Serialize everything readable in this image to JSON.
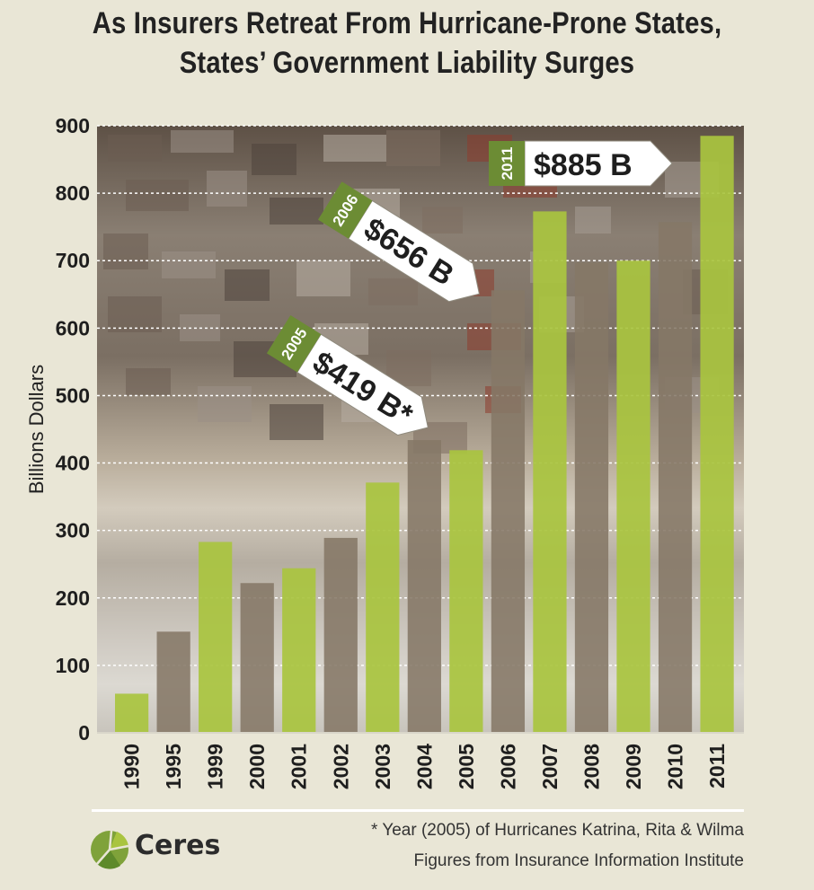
{
  "title_line1": "As Insurers Retreat From Hurricane-Prone States,",
  "title_line2": "States’ Government Liability Surges",
  "chart_data": {
    "type": "bar",
    "ylabel": "Billions Dollars",
    "ylim": [
      0,
      900
    ],
    "yticks": [
      0,
      100,
      200,
      300,
      400,
      500,
      600,
      700,
      800,
      900
    ],
    "grid": true,
    "categories": [
      "1990",
      "1995",
      "1999",
      "2000",
      "2001",
      "2002",
      "2003",
      "2004",
      "2005",
      "2006",
      "2007",
      "2008",
      "2009",
      "2010",
      "2011"
    ],
    "values": [
      58,
      150,
      283,
      222,
      244,
      289,
      371,
      434,
      419,
      656,
      773,
      697,
      700,
      757,
      885
    ],
    "bar_colors": [
      "green",
      "brown",
      "green",
      "brown",
      "green",
      "brown",
      "green",
      "brown",
      "green",
      "brown",
      "green",
      "brown",
      "green",
      "brown",
      "green"
    ],
    "annotations": [
      {
        "year": "2005",
        "text": "$419 B*"
      },
      {
        "year": "2006",
        "text": "$656 B"
      },
      {
        "year": "2011",
        "text": "$885 B"
      }
    ]
  },
  "colors": {
    "green": "#a9c43f",
    "brown": "#857866",
    "tag_green": "#6c8c34",
    "background": "#e9e6d6"
  },
  "footer": {
    "note1": "* Year (2005) of Hurricanes Katrina, Rita & Wilma",
    "note2": "Figures from Insurance Information Institute",
    "logo": "Ceres"
  }
}
